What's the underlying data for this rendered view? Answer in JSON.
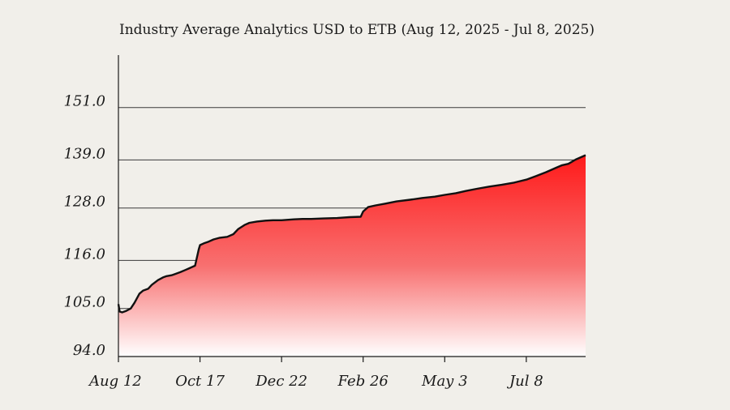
{
  "chart_data": {
    "type": "area",
    "title": "Industry Average Analytics  USD to ETB (Aug 12, 2025 - Jul 8, 2025)",
    "xlabel": "",
    "ylabel": "",
    "ylim": [
      94.0,
      163.0
    ],
    "xlim": [
      "2024-08-12",
      "2025-08-25"
    ],
    "y_ticks": [
      {
        "value": 94.0,
        "label": "94.0"
      },
      {
        "value": 105.0,
        "label": "105.0"
      },
      {
        "value": 116.0,
        "label": "116.0"
      },
      {
        "value": 128.0,
        "label": "128.0"
      },
      {
        "value": 139.0,
        "label": "139.0"
      },
      {
        "value": 151.0,
        "label": "151.0"
      }
    ],
    "x_ticks": [
      {
        "value": "2024-08-12",
        "label": "Aug 12"
      },
      {
        "value": "2024-10-17",
        "label": "Oct 17"
      },
      {
        "value": "2024-12-22",
        "label": "Dec 22"
      },
      {
        "value": "2025-02-26",
        "label": "Feb 26"
      },
      {
        "value": "2025-05-03",
        "label": "May 3"
      },
      {
        "value": "2025-07-08",
        "label": "Jul 8"
      }
    ],
    "grid": true,
    "legend": "none",
    "colors": {
      "fill_top": "#ff1a1a",
      "fill_bottom": "#ffffff",
      "line": "#111111",
      "grid": "#3a3a3a",
      "background": "#f1efea"
    },
    "series": [
      {
        "x": [
          "2024-08-12",
          "2024-08-13",
          "2024-08-15",
          "2024-08-18",
          "2024-08-22",
          "2024-08-25",
          "2024-08-29",
          "2024-09-01",
          "2024-09-05",
          "2024-09-08",
          "2024-09-13",
          "2024-09-17",
          "2024-09-20",
          "2024-09-24",
          "2024-09-27",
          "2024-10-01",
          "2024-10-05",
          "2024-10-09",
          "2024-10-13",
          "2024-10-16",
          "2024-10-17",
          "2024-10-20",
          "2024-10-24",
          "2024-10-28",
          "2024-11-02",
          "2024-11-08",
          "2024-11-13",
          "2024-11-17",
          "2024-11-22",
          "2024-11-26",
          "2024-12-02",
          "2024-12-09",
          "2024-12-15",
          "2024-12-22",
          "2025-01-01",
          "2025-01-08",
          "2025-01-15",
          "2025-01-25",
          "2025-02-05",
          "2025-02-15",
          "2025-02-24",
          "2025-02-26",
          "2025-03-02",
          "2025-03-08",
          "2025-03-16",
          "2025-03-25",
          "2025-04-05",
          "2025-04-15",
          "2025-04-25",
          "2025-05-03",
          "2025-05-12",
          "2025-05-20",
          "2025-05-29",
          "2025-06-08",
          "2025-06-18",
          "2025-06-28",
          "2025-07-08",
          "2025-07-16",
          "2025-07-24",
          "2025-08-01",
          "2025-08-06",
          "2025-08-11",
          "2025-08-17",
          "2025-08-25"
        ],
        "values": [
          106.0,
          104.3,
          104.1,
          104.4,
          105.0,
          106.3,
          108.4,
          109.1,
          109.5,
          110.4,
          111.5,
          112.1,
          112.4,
          112.6,
          112.9,
          113.3,
          113.8,
          114.3,
          114.8,
          118.5,
          119.5,
          119.9,
          120.3,
          120.8,
          121.2,
          121.4,
          122.0,
          123.2,
          124.1,
          124.6,
          124.9,
          125.1,
          125.2,
          125.2,
          125.4,
          125.5,
          125.5,
          125.6,
          125.7,
          125.9,
          126.0,
          127.2,
          128.2,
          128.6,
          129.0,
          129.5,
          129.9,
          130.3,
          130.6,
          131.0,
          131.4,
          131.9,
          132.4,
          132.9,
          133.3,
          133.8,
          134.5,
          135.3,
          136.2,
          137.2,
          137.8,
          138.1,
          139.1,
          140.1
        ]
      }
    ]
  }
}
